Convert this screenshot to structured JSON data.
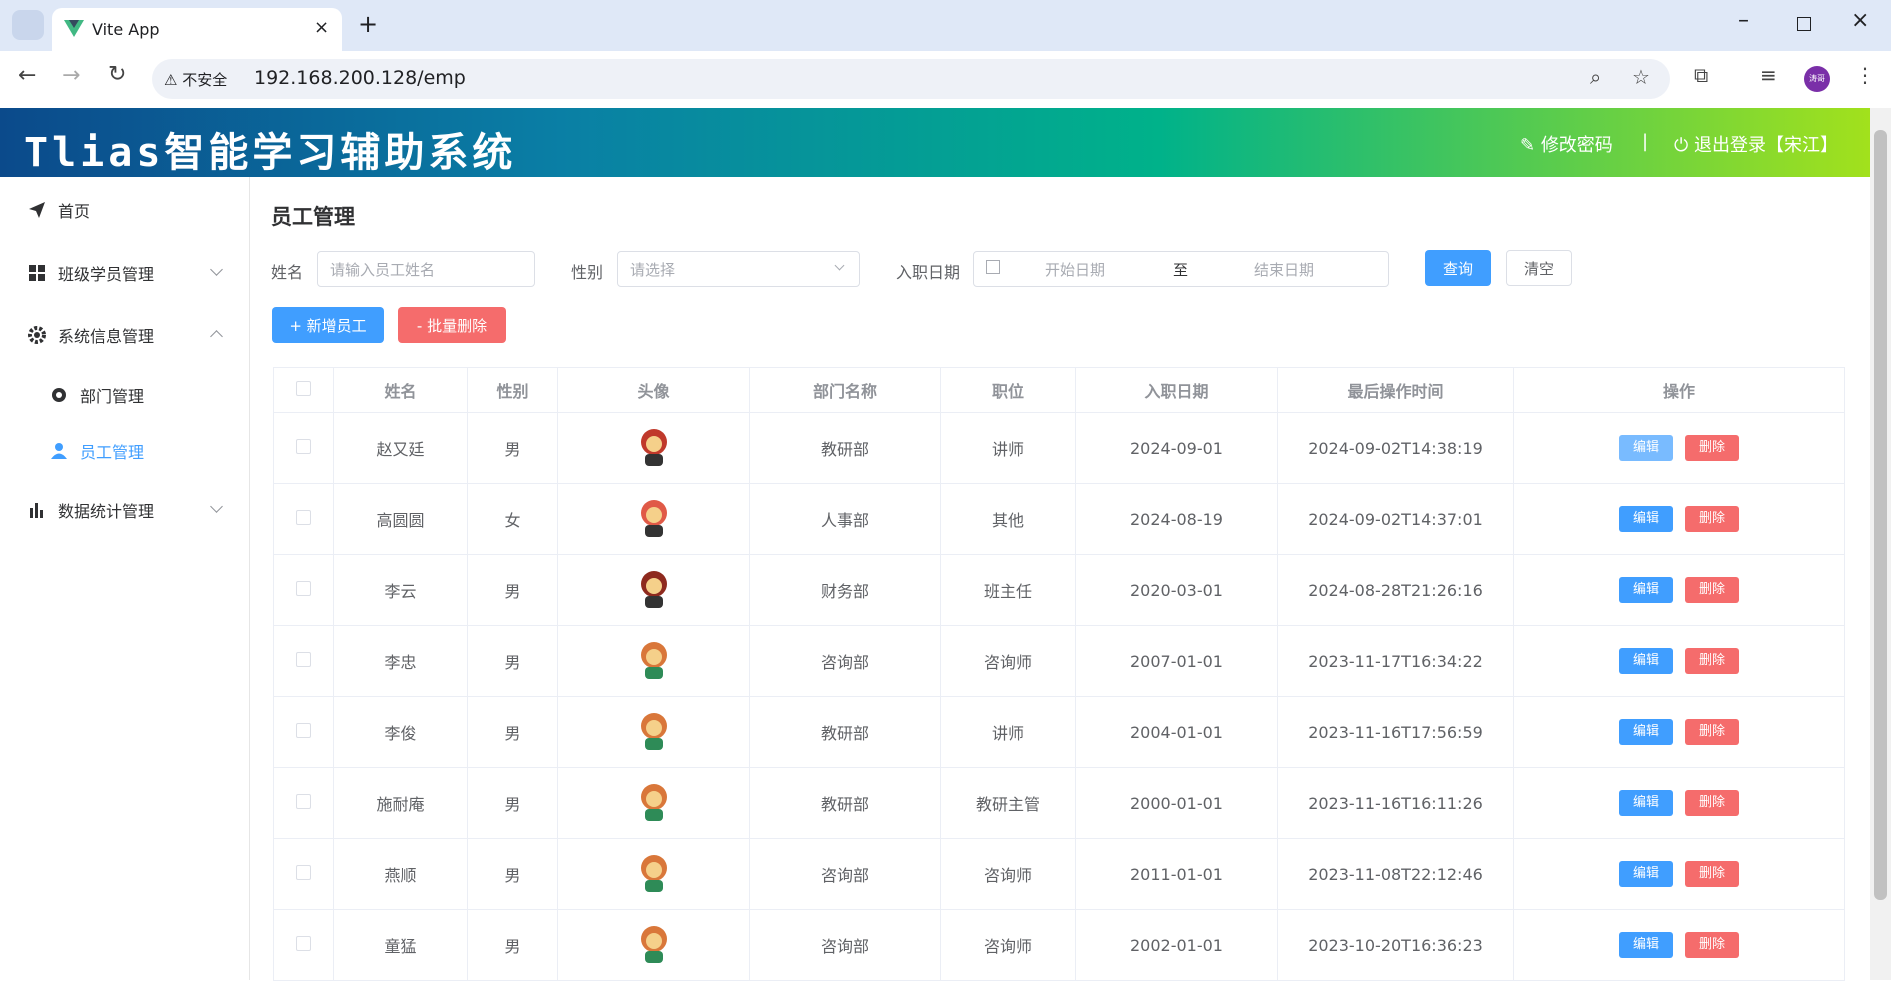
{
  "browser": {
    "tab_title": "Vite App",
    "security": "不安全",
    "url": "192.168.200.128/emp",
    "profile": "涛哥"
  },
  "header": {
    "title": "Tlias智能学习辅助系统",
    "change_password": "修改密码",
    "separator": "|",
    "logout": "退出登录【宋江】"
  },
  "sidebar": {
    "items": [
      "首页",
      "班级学员管理",
      "系统信息管理",
      "部门管理",
      "员工管理",
      "数据统计管理"
    ]
  },
  "page_title": "员工管理",
  "search": {
    "name_label": "姓名",
    "name_placeholder": "请输入员工姓名",
    "gender_label": "性别",
    "gender_placeholder": "请选择",
    "date_label": "入职日期",
    "start_placeholder": "开始日期",
    "range_sep": "至",
    "end_placeholder": "结束日期",
    "query": "查询",
    "clear": "清空"
  },
  "toolbar": {
    "add": "+ 新增员工",
    "batch_delete": "- 批量删除"
  },
  "table": {
    "columns": [
      "姓名",
      "性别",
      "头像",
      "部门名称",
      "职位",
      "入职日期",
      "最后操作时间",
      "操作"
    ],
    "actions": [
      "编辑",
      "删除"
    ],
    "rows": [
      [
        "赵又廷",
        "男",
        "教研部",
        "讲师",
        "2024-09-01",
        "2024-09-02T14:38:19"
      ],
      [
        "高圆圆",
        "女",
        "人事部",
        "其他",
        "2024-08-19",
        "2024-09-02T14:37:01"
      ],
      [
        "李云",
        "男",
        "财务部",
        "班主任",
        "2020-03-01",
        "2024-08-28T21:26:16"
      ],
      [
        "李忠",
        "男",
        "咨询部",
        "咨询师",
        "2007-01-01",
        "2023-11-17T16:34:22"
      ],
      [
        "李俊",
        "男",
        "教研部",
        "讲师",
        "2004-01-01",
        "2023-11-16T17:56:59"
      ],
      [
        "施耐庵",
        "男",
        "教研部",
        "教研主管",
        "2000-01-01",
        "2023-11-16T16:11:26"
      ],
      [
        "燕顺",
        "男",
        "咨询部",
        "咨询师",
        "2011-01-01",
        "2023-11-08T22:12:46"
      ],
      [
        "童猛",
        "男",
        "咨询部",
        "咨询师",
        "2002-01-01",
        "2023-10-20T16:36:23"
      ]
    ]
  }
}
